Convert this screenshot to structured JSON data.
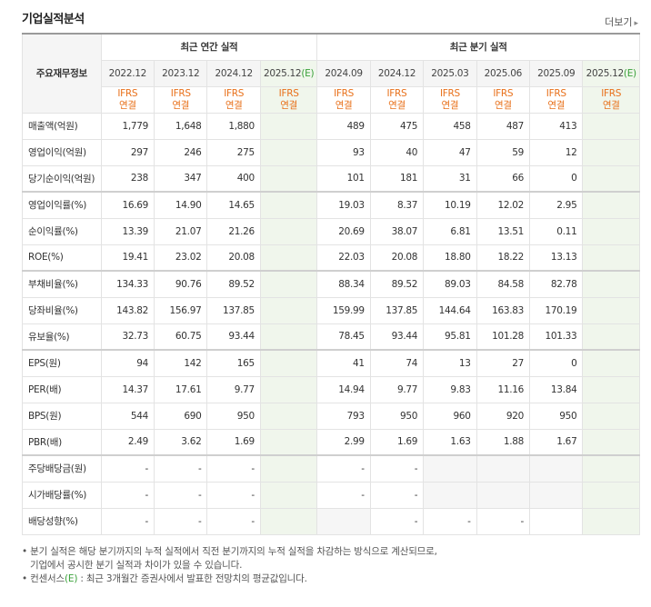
{
  "header": {
    "title": "기업실적분석",
    "more_label": "더보기",
    "more_arrow": "▸"
  },
  "table": {
    "row_header_label": "주요재무정보",
    "group_annual": "최근 연간 실적",
    "group_quarter": "최근 분기 실적",
    "periods": [
      {
        "label": "2022.12",
        "est": false
      },
      {
        "label": "2023.12",
        "est": false
      },
      {
        "label": "2024.12",
        "est": false
      },
      {
        "label": "2025.12",
        "est": true,
        "mark": "(E)"
      },
      {
        "label": "2024.09",
        "est": false
      },
      {
        "label": "2024.12",
        "est": false
      },
      {
        "label": "2025.03",
        "est": false
      },
      {
        "label": "2025.06",
        "est": false
      },
      {
        "label": "2025.09",
        "est": false
      },
      {
        "label": "2025.12",
        "est": true,
        "mark": "(E)"
      }
    ],
    "ifrs_top": "IFRS",
    "ifrs_bottom": "연결",
    "rows": [
      {
        "label": "매출액(억원)",
        "sep": false,
        "values": [
          "1,779",
          "1,648",
          "1,880",
          "",
          "489",
          "475",
          "458",
          "487",
          "413",
          ""
        ]
      },
      {
        "label": "영업이익(억원)",
        "sep": false,
        "values": [
          "297",
          "246",
          "275",
          "",
          "93",
          "40",
          "47",
          "59",
          "12",
          ""
        ]
      },
      {
        "label": "당기순이익(억원)",
        "sep": false,
        "values": [
          "238",
          "347",
          "400",
          "",
          "101",
          "181",
          "31",
          "66",
          "0",
          ""
        ]
      },
      {
        "label": "영업이익률(%)",
        "sep": true,
        "values": [
          "16.69",
          "14.90",
          "14.65",
          "",
          "19.03",
          "8.37",
          "10.19",
          "12.02",
          "2.95",
          ""
        ]
      },
      {
        "label": "순이익률(%)",
        "sep": false,
        "values": [
          "13.39",
          "21.07",
          "21.26",
          "",
          "20.69",
          "38.07",
          "6.81",
          "13.51",
          "0.11",
          ""
        ]
      },
      {
        "label": "ROE(%)",
        "sep": false,
        "values": [
          "19.41",
          "23.02",
          "20.08",
          "",
          "22.03",
          "20.08",
          "18.80",
          "18.22",
          "13.13",
          ""
        ]
      },
      {
        "label": "부채비율(%)",
        "sep": true,
        "values": [
          "134.33",
          "90.76",
          "89.52",
          "",
          "88.34",
          "89.52",
          "89.03",
          "84.58",
          "82.78",
          ""
        ]
      },
      {
        "label": "당좌비율(%)",
        "sep": false,
        "values": [
          "143.82",
          "156.97",
          "137.85",
          "",
          "159.99",
          "137.85",
          "144.64",
          "163.83",
          "170.19",
          ""
        ]
      },
      {
        "label": "유보율(%)",
        "sep": false,
        "values": [
          "32.73",
          "60.75",
          "93.44",
          "",
          "78.45",
          "93.44",
          "95.81",
          "101.28",
          "101.33",
          ""
        ]
      },
      {
        "label": "EPS(원)",
        "sep": true,
        "values": [
          "94",
          "142",
          "165",
          "",
          "41",
          "74",
          "13",
          "27",
          "0",
          ""
        ]
      },
      {
        "label": "PER(배)",
        "sep": false,
        "values": [
          "14.37",
          "17.61",
          "9.77",
          "",
          "14.94",
          "9.77",
          "9.83",
          "11.16",
          "13.84",
          ""
        ]
      },
      {
        "label": "BPS(원)",
        "sep": false,
        "values": [
          "544",
          "690",
          "950",
          "",
          "793",
          "950",
          "960",
          "920",
          "950",
          ""
        ]
      },
      {
        "label": "PBR(배)",
        "sep": false,
        "values": [
          "2.49",
          "3.62",
          "1.69",
          "",
          "2.99",
          "1.69",
          "1.63",
          "1.88",
          "1.67",
          ""
        ]
      },
      {
        "label": "주당배당금(원)",
        "sep": true,
        "grey": [
          6,
          7,
          8
        ],
        "values": [
          "-",
          "-",
          "-",
          "",
          "-",
          "-",
          "",
          "",
          "",
          ""
        ]
      },
      {
        "label": "시가배당률(%)",
        "sep": false,
        "grey": [
          6,
          7,
          8
        ],
        "values": [
          "-",
          "-",
          "-",
          "",
          "-",
          "-",
          "",
          "",
          "",
          ""
        ]
      },
      {
        "label": "배당성향(%)",
        "sep": false,
        "grey": [
          4
        ],
        "values": [
          "-",
          "-",
          "-",
          "",
          "",
          "-",
          "-",
          "-",
          "",
          ""
        ]
      }
    ]
  },
  "notes": {
    "line1": "분기 실적은 해당 분기까지의 누적 실적에서 직전 분기까지의 누적 실적을 차감하는 방식으로 계산되므로,",
    "line2": "기업에서 공시한 분기 실적과 차이가 있을 수 있습니다.",
    "line3_prefix": "컨센서스",
    "line3_mark": "(E)",
    "line3_suffix": " : 최근 3개월간 증권사에서 발표한 전망치의 평균값입니다.",
    "bullet": "•"
  },
  "colors": {
    "ifrs": "#e8701a",
    "estimate_bg": "#f0f6ec",
    "estimate_mark": "#3aa13a"
  }
}
